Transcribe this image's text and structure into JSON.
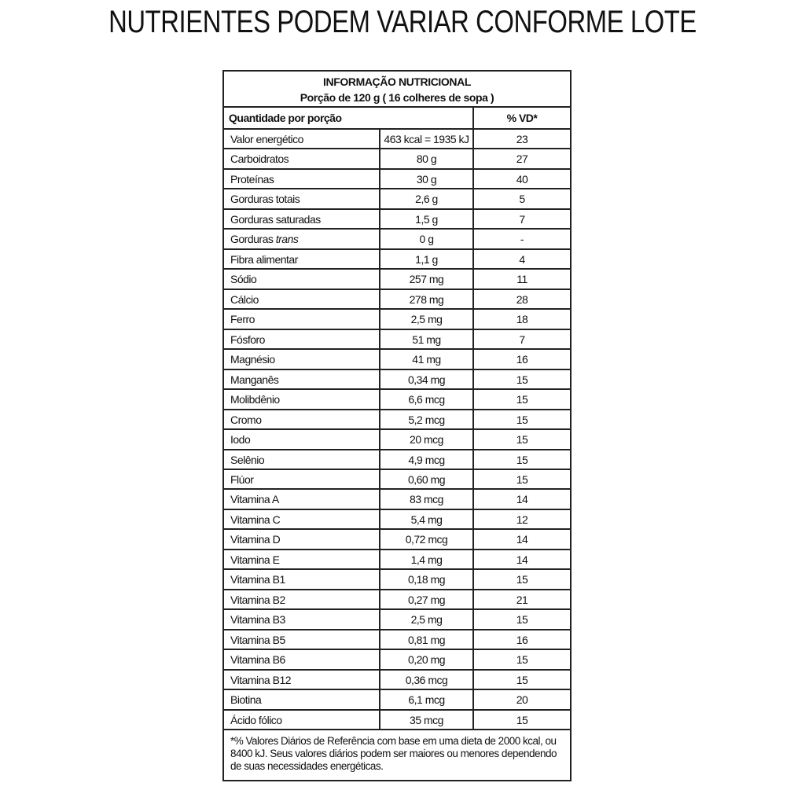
{
  "title": "NUTRIENTES PODEM VARIAR CONFORME LOTE",
  "header": {
    "line1": "INFORMAÇÃO NUTRICIONAL",
    "line2": "Porção de 120 g ( 16 colheres de sopa )"
  },
  "columns": {
    "quantity": "Quantidade por porção",
    "vd": "% VD*"
  },
  "rows": [
    {
      "name": "Valor energético",
      "amount": "463 kcal = 1935 kJ",
      "vd": "23"
    },
    {
      "name": "Carboidratos",
      "amount": "80 g",
      "vd": "27"
    },
    {
      "name": "Proteínas",
      "amount": "30 g",
      "vd": "40"
    },
    {
      "name": "Gorduras totais",
      "amount": "2,6 g",
      "vd": "5"
    },
    {
      "name": "Gorduras saturadas",
      "amount": "1,5 g",
      "vd": "7"
    },
    {
      "name": "Gorduras",
      "name_italic": "trans",
      "amount": "0 g",
      "vd": "-"
    },
    {
      "name": "Fibra alimentar",
      "amount": "1,1 g",
      "vd": "4"
    },
    {
      "name": "Sódio",
      "amount": "257 mg",
      "vd": "11"
    },
    {
      "name": "Cálcio",
      "amount": "278 mg",
      "vd": "28"
    },
    {
      "name": "Ferro",
      "amount": "2,5 mg",
      "vd": "18"
    },
    {
      "name": "Fósforo",
      "amount": "51 mg",
      "vd": "7"
    },
    {
      "name": "Magnésio",
      "amount": "41 mg",
      "vd": "16"
    },
    {
      "name": "Manganês",
      "amount": "0,34 mg",
      "vd": "15"
    },
    {
      "name": "Molibdênio",
      "amount": "6,6 mcg",
      "vd": "15"
    },
    {
      "name": "Cromo",
      "amount": "5,2 mcg",
      "vd": "15"
    },
    {
      "name": "Iodo",
      "amount": "20 mcg",
      "vd": "15"
    },
    {
      "name": "Selênio",
      "amount": "4,9 mcg",
      "vd": "15"
    },
    {
      "name": "Flúor",
      "amount": "0,60 mg",
      "vd": "15"
    },
    {
      "name": "Vitamina A",
      "amount": "83 mcg",
      "vd": "14"
    },
    {
      "name": "Vitamina C",
      "amount": "5,4 mg",
      "vd": "12"
    },
    {
      "name": "Vitamina D",
      "amount": "0,72 mcg",
      "vd": "14"
    },
    {
      "name": "Vitamina E",
      "amount": "1,4 mg",
      "vd": "14"
    },
    {
      "name": "Vitamina B1",
      "amount": "0,18 mg",
      "vd": "15"
    },
    {
      "name": "Vitamina B2",
      "amount": "0,27 mg",
      "vd": "21"
    },
    {
      "name": "Vitamina B3",
      "amount": "2,5 mg",
      "vd": "15"
    },
    {
      "name": "Vitamina B5",
      "amount": "0,81 mg",
      "vd": "16"
    },
    {
      "name": "Vitamina B6",
      "amount": "0,20 mg",
      "vd": "15"
    },
    {
      "name": "Vitamina B12",
      "amount": "0,36 mcg",
      "vd": "15"
    },
    {
      "name": "Biotina",
      "amount": "6,1 mcg",
      "vd": "20"
    },
    {
      "name": "Ácido fólico",
      "amount": "35 mcg",
      "vd": "15"
    }
  ],
  "footnote": "*% Valores Diários de Referência com base em uma dieta de 2000 kcal, ou 8400 kJ. Seus valores diários podem ser maiores ou menores dependendo de suas necessidades energéticas."
}
